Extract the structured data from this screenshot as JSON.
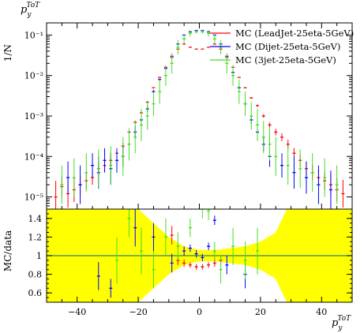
{
  "chart_data": [
    {
      "type": "scatter",
      "title": "",
      "title_label": "p_y^ToT",
      "ylabel": "1/N",
      "yscale": "log",
      "ylim": [
        5e-06,
        0.2
      ],
      "xlim": [
        -50,
        50
      ],
      "y_tick_labels": [
        "10⁻⁵",
        "10⁻⁴",
        "10⁻³",
        "10⁻²",
        "10⁻¹"
      ],
      "y_ticks": [
        1e-05,
        0.0001,
        0.001,
        0.01,
        0.1
      ],
      "legend_position": "top-right",
      "series": [
        {
          "name": "MC (LeadJet-25eta-5GeV)",
          "color": "#ff0000",
          "x": [
            -47,
            -45,
            -43,
            -41,
            -39,
            -37,
            -35,
            -33,
            -31,
            -29,
            -27,
            -25,
            -23,
            -21,
            -19,
            -17,
            -15,
            -13,
            -11,
            -9,
            -7,
            -5,
            -3,
            -1,
            1,
            3,
            5,
            7,
            9,
            11,
            13,
            15,
            17,
            19,
            21,
            23,
            25,
            27,
            29,
            31,
            33,
            35,
            37,
            39,
            41,
            43,
            45,
            47
          ],
          "y": [
            1e-05,
            1.8e-05,
            1.2e-05,
            1.5e-05,
            2e-05,
            2.5e-05,
            3e-05,
            5e-05,
            6e-05,
            8e-05,
            0.00012,
            0.00018,
            0.0004,
            0.0007,
            0.0012,
            0.0022,
            0.005,
            0.009,
            0.016,
            0.028,
            0.045,
            0.06,
            0.05,
            0.045,
            0.045,
            0.05,
            0.06,
            0.045,
            0.028,
            0.016,
            0.009,
            0.005,
            0.0028,
            0.0018,
            0.001,
            0.0006,
            0.0004,
            0.0003,
            0.0002,
            0.00012,
            8e-05,
            5e-05,
            4e-05,
            3e-05,
            2.5e-05,
            2e-05,
            1.5e-05,
            1.2e-05
          ],
          "yerr_factor": [
            2.5,
            1.8,
            2.2,
            2,
            1.7,
            1.6,
            1.5,
            1.4,
            1.35,
            1.3,
            1.25,
            1.2,
            1.15,
            1.1,
            1.08,
            1.05,
            1.03,
            1.02,
            1.01,
            1.01,
            1.01,
            1.01,
            1.01,
            1.01,
            1.01,
            1.01,
            1.01,
            1.01,
            1.01,
            1.01,
            1.02,
            1.03,
            1.05,
            1.07,
            1.1,
            1.15,
            1.2,
            1.25,
            1.3,
            1.35,
            1.4,
            1.5,
            1.55,
            1.6,
            1.7,
            1.8,
            2,
            2.2
          ]
        },
        {
          "name": "MC (Dijet-25eta-5GeV)",
          "color": "#0000ff",
          "x": [
            -43,
            -39,
            -35,
            -33,
            -31,
            -29,
            -27,
            -25,
            -23,
            -21,
            -19,
            -17,
            -15,
            -13,
            -11,
            -9,
            -7,
            -5,
            -3,
            -1,
            1,
            3,
            5,
            7,
            9,
            11,
            13,
            15,
            17,
            19,
            21,
            23,
            27,
            31,
            35,
            39,
            43
          ],
          "y": [
            3e-05,
            2e-05,
            6e-05,
            4e-05,
            8e-05,
            5e-05,
            8e-05,
            0.0001,
            0.0002,
            0.0004,
            0.0008,
            0.0015,
            0.004,
            0.008,
            0.015,
            0.03,
            0.06,
            0.1,
            0.12,
            0.13,
            0.13,
            0.12,
            0.1,
            0.06,
            0.03,
            0.012,
            0.005,
            0.002,
            0.0008,
            0.0004,
            0.0002,
            0.0001,
            6e-05,
            4e-05,
            3e-05,
            2e-05,
            1.5e-05
          ],
          "yerr_factor": [
            2.5,
            3,
            2,
            2.5,
            2,
            2.5,
            2,
            1.8,
            1.6,
            1.4,
            1.3,
            1.2,
            1.1,
            1.06,
            1.04,
            1.03,
            1.02,
            1.02,
            1.02,
            1.02,
            1.02,
            1.02,
            1.02,
            1.02,
            1.03,
            1.05,
            1.08,
            1.15,
            1.25,
            1.35,
            1.5,
            1.8,
            2,
            2.5,
            2.5,
            3,
            3
          ]
        },
        {
          "name": "MC (3jet-25eta-5GeV)",
          "color": "#44dd22",
          "x": [
            -45,
            -41,
            -37,
            -33,
            -29,
            -25,
            -23,
            -21,
            -19,
            -17,
            -15,
            -13,
            -11,
            -9,
            -7,
            -5,
            -3,
            -1,
            1,
            3,
            5,
            7,
            9,
            11,
            13,
            15,
            17,
            19,
            21,
            23,
            25,
            29,
            33,
            37,
            41,
            45
          ],
          "y": [
            2e-05,
            3e-05,
            4e-05,
            5e-05,
            6e-05,
            0.0001,
            0.0002,
            0.0003,
            0.0006,
            0.001,
            0.002,
            0.004,
            0.01,
            0.02,
            0.05,
            0.08,
            0.11,
            0.12,
            0.12,
            0.11,
            0.08,
            0.05,
            0.02,
            0.01,
            0.004,
            0.002,
            0.001,
            0.0006,
            0.0003,
            0.0002,
            0.0001,
            6e-05,
            5e-05,
            4e-05,
            3e-05,
            2e-05
          ],
          "yerr_factor": [
            3,
            3,
            3,
            3,
            3,
            3,
            2.5,
            2.5,
            2.5,
            2.2,
            2,
            2,
            1.8,
            1.8,
            1.5,
            1.3,
            1.2,
            1.1,
            1.1,
            1.2,
            1.3,
            1.5,
            1.8,
            1.8,
            2,
            2,
            2.2,
            2.5,
            2.5,
            2.5,
            3,
            3,
            3,
            3,
            3,
            3
          ]
        }
      ]
    },
    {
      "type": "scatter",
      "title": "",
      "ylabel": "MC/data",
      "xlabel": "p_y^ToT",
      "ylim": [
        0.5,
        1.5
      ],
      "xlim": [
        -50,
        50
      ],
      "x_ticks": [
        -40,
        -20,
        0,
        20,
        40
      ],
      "x_tick_labels": [
        "−40",
        "−20",
        "0",
        "20",
        "40"
      ],
      "y_ticks": [
        0.6,
        0.8,
        1,
        1.2,
        1.4
      ],
      "y_tick_labels": [
        "0.6",
        "0.8",
        "1",
        "1.2",
        "1.4"
      ],
      "reference_line": 1,
      "band_color": "#ffff00",
      "band": {
        "x": [
          -50,
          -45,
          -40,
          -35,
          -30,
          -25,
          -20,
          -15,
          -10,
          -5,
          0,
          5,
          10,
          15,
          20,
          25,
          30,
          35,
          40,
          45,
          50
        ],
        "halfwidth": [
          0.6,
          0.6,
          0.6,
          0.6,
          0.6,
          0.6,
          0.5,
          0.35,
          0.2,
          0.1,
          0.06,
          0.06,
          0.08,
          0.1,
          0.15,
          0.25,
          0.6,
          0.6,
          0.6,
          0.6,
          0.6
        ]
      },
      "series": [
        {
          "name": "MC (LeadJet-25eta-5GeV)",
          "color": "#ff0000",
          "x": [
            -9,
            -7,
            -5,
            -3,
            -1,
            1,
            3,
            5,
            7
          ],
          "y": [
            1.22,
            0.95,
            0.92,
            0.9,
            0.88,
            0.88,
            0.9,
            0.92,
            0.95
          ],
          "yerr": [
            0.1,
            0.05,
            0.04,
            0.03,
            0.03,
            0.03,
            0.03,
            0.04,
            0.05
          ]
        },
        {
          "name": "MC (Dijet-25eta-5GeV)",
          "color": "#0000ff",
          "x": [
            -33,
            -29,
            -21,
            -15,
            -9,
            -5,
            -3,
            -1,
            1,
            3,
            5,
            9,
            15
          ],
          "y": [
            0.78,
            0.65,
            1.3,
            1.2,
            0.92,
            1.05,
            1.08,
            1.02,
            0.98,
            1.1,
            1.38,
            0.9,
            0.8
          ],
          "yerr": [
            0.15,
            0.1,
            0.2,
            0.15,
            0.1,
            0.05,
            0.04,
            0.04,
            0.04,
            0.04,
            0.05,
            0.1,
            0.15
          ]
        },
        {
          "name": "MC (3jet-25eta-5GeV)",
          "color": "#44dd22",
          "x": [
            -27,
            -23,
            -19,
            -15,
            -11,
            -7,
            -3,
            1,
            3,
            5,
            7,
            11,
            15,
            19
          ],
          "y": [
            0.95,
            1.4,
            1.05,
            0.85,
            1.2,
            1.1,
            1.3,
            1.5,
            1.48,
            1.05,
            0.85,
            1.1,
            0.95,
            1.05
          ],
          "yerr": [
            0.25,
            0.2,
            0.25,
            0.2,
            0.2,
            0.15,
            0.1,
            0.1,
            0.1,
            0.1,
            0.15,
            0.2,
            0.2,
            0.25
          ]
        }
      ]
    }
  ]
}
